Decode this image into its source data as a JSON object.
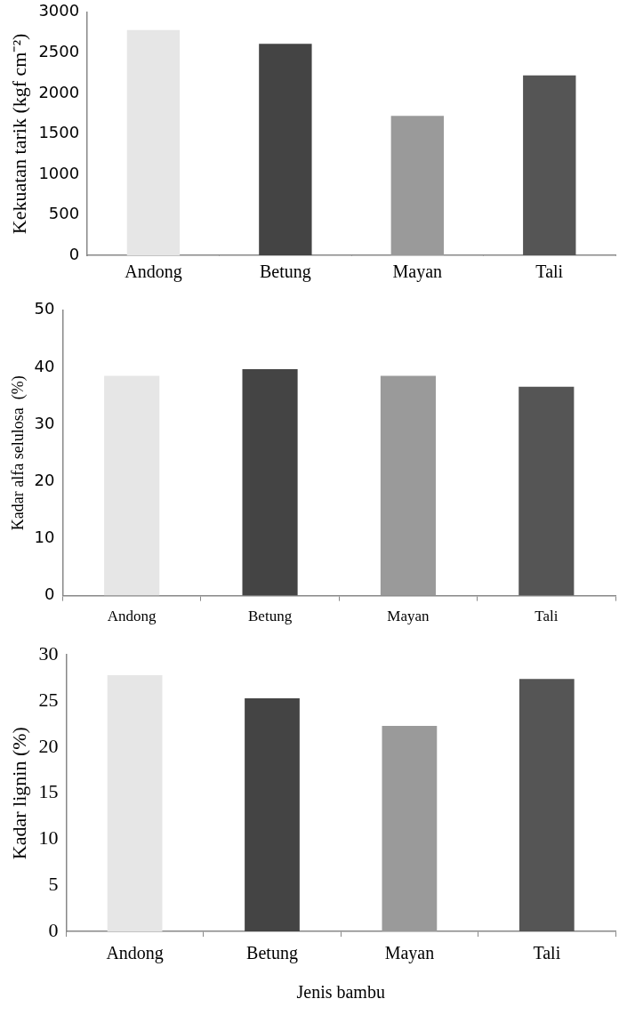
{
  "chart_data": [
    {
      "type": "bar",
      "ylabel": "Kekuatan tarik (kgf cm⁻²)",
      "categories": [
        "Andong",
        "Betung",
        "Mayan",
        "Tali"
      ],
      "values": [
        2780,
        2610,
        1720,
        2220
      ],
      "colors": [
        "#e6e6e6",
        "#444444",
        "#9a9a9a",
        "#555555"
      ],
      "ylim": [
        0,
        3000
      ],
      "yticks": [
        0,
        500,
        1000,
        1500,
        2000,
        2500,
        3000
      ]
    },
    {
      "type": "bar",
      "ylabel": "Kadar alfa selulosa  (%)",
      "categories": [
        "Andong",
        "Betung",
        "Mayan",
        "Tali"
      ],
      "values": [
        38.5,
        39.7,
        38.5,
        36.6
      ],
      "colors": [
        "#e6e6e6",
        "#444444",
        "#9a9a9a",
        "#555555"
      ],
      "ylim": [
        0,
        50
      ],
      "yticks": [
        0,
        10,
        20,
        30,
        40,
        50
      ]
    },
    {
      "type": "bar",
      "xlabel": "Jenis bambu",
      "ylabel": "Kadar lignin (%)",
      "categories": [
        "Andong",
        "Betung",
        "Mayan",
        "Tali"
      ],
      "values": [
        27.8,
        25.3,
        22.3,
        27.4
      ],
      "colors": [
        "#e6e6e6",
        "#444444",
        "#9a9a9a",
        "#555555"
      ],
      "ylim": [
        0,
        30
      ],
      "yticks": [
        0,
        5,
        10,
        15,
        20,
        25,
        30
      ]
    }
  ]
}
